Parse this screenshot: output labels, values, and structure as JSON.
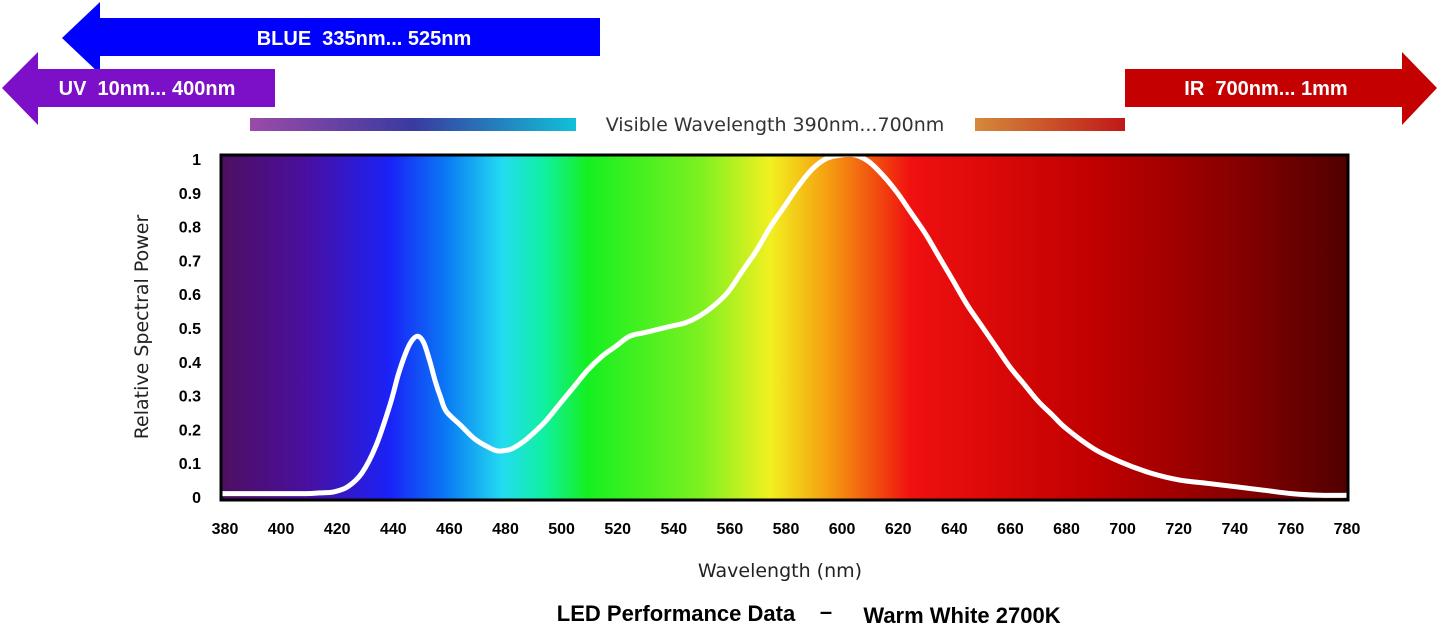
{
  "chart_data": {
    "type": "line",
    "title": "LED Performance Data",
    "title_separator": "–",
    "subtitle": "Warm White 2700K",
    "xlabel": "Wavelength (nm)",
    "ylabel": "Relative Spectral Power",
    "xlim": [
      380,
      780
    ],
    "ylim": [
      0,
      1
    ],
    "x_ticks": [
      380,
      400,
      420,
      440,
      460,
      480,
      500,
      520,
      540,
      560,
      580,
      600,
      620,
      640,
      660,
      680,
      700,
      720,
      740,
      760,
      780
    ],
    "y_ticks": [
      0,
      0.1,
      0.2,
      0.3,
      0.4,
      0.5,
      0.6,
      0.7,
      0.8,
      0.9,
      1
    ],
    "y_tick_labels": [
      "0",
      "0.1",
      "0.2",
      "0.3",
      "0.4",
      "0.5",
      "0.6",
      "0.7",
      "0.8",
      "0.9",
      "1"
    ],
    "grid": false,
    "line_color": "#ffffff",
    "series": [
      {
        "x": [
          380,
          390,
          400,
          410,
          415,
          420,
          425,
          430,
          435,
          440,
          443,
          446,
          448,
          450,
          452,
          454,
          456,
          458,
          460,
          465,
          470,
          475,
          478,
          480,
          483,
          487,
          490,
          495,
          500,
          505,
          510,
          515,
          520,
          525,
          530,
          535,
          540,
          545,
          550,
          555,
          560,
          565,
          570,
          575,
          580,
          585,
          590,
          595,
          600,
          605,
          610,
          615,
          620,
          625,
          630,
          635,
          640,
          645,
          650,
          655,
          660,
          665,
          670,
          675,
          680,
          690,
          700,
          710,
          720,
          730,
          740,
          750,
          760,
          770,
          780
        ],
        "y": [
          0.01,
          0.01,
          0.01,
          0.01,
          0.012,
          0.015,
          0.03,
          0.07,
          0.15,
          0.27,
          0.36,
          0.43,
          0.46,
          0.47,
          0.45,
          0.4,
          0.34,
          0.29,
          0.25,
          0.21,
          0.17,
          0.145,
          0.135,
          0.135,
          0.14,
          0.16,
          0.18,
          0.22,
          0.27,
          0.32,
          0.37,
          0.41,
          0.44,
          0.47,
          0.48,
          0.49,
          0.5,
          0.51,
          0.53,
          0.56,
          0.6,
          0.66,
          0.72,
          0.79,
          0.85,
          0.91,
          0.96,
          0.99,
          1.0,
          1.0,
          0.98,
          0.94,
          0.89,
          0.83,
          0.77,
          0.7,
          0.63,
          0.56,
          0.5,
          0.44,
          0.38,
          0.33,
          0.28,
          0.24,
          0.2,
          0.14,
          0.1,
          0.07,
          0.05,
          0.04,
          0.03,
          0.02,
          0.01,
          0.005,
          0.005
        ]
      }
    ],
    "spectrum_stops": [
      {
        "nm": 380,
        "color": "#4e0f5f"
      },
      {
        "nm": 410,
        "color": "#4a0fa0"
      },
      {
        "nm": 440,
        "color": "#1a22f8"
      },
      {
        "nm": 460,
        "color": "#0a7af5"
      },
      {
        "nm": 480,
        "color": "#23dcf0"
      },
      {
        "nm": 495,
        "color": "#10f0a0"
      },
      {
        "nm": 510,
        "color": "#15f020"
      },
      {
        "nm": 550,
        "color": "#7cf020"
      },
      {
        "nm": 575,
        "color": "#f2f020"
      },
      {
        "nm": 595,
        "color": "#f5a010"
      },
      {
        "nm": 625,
        "color": "#f01010"
      },
      {
        "nm": 690,
        "color": "#c00000"
      },
      {
        "nm": 740,
        "color": "#880000"
      },
      {
        "nm": 780,
        "color": "#500000"
      }
    ],
    "annotations": {
      "blue": {
        "label": "BLUE  335nm... 525nm",
        "color": "#0000ff",
        "direction": "left"
      },
      "uv": {
        "label": "UV  10nm... 400nm",
        "color": "#7b10c8",
        "direction": "left"
      },
      "ir": {
        "label": "IR  700nm... 1mm",
        "color": "#c40000",
        "direction": "right"
      },
      "visible": {
        "label": "Visible Wavelength 390nm...700nm",
        "left_bar_colors": [
          "#9b4aa8",
          "#3a3aa0",
          "#10c0d8"
        ],
        "right_bar_colors": [
          "#d48a3a",
          "#c01818"
        ]
      }
    }
  }
}
